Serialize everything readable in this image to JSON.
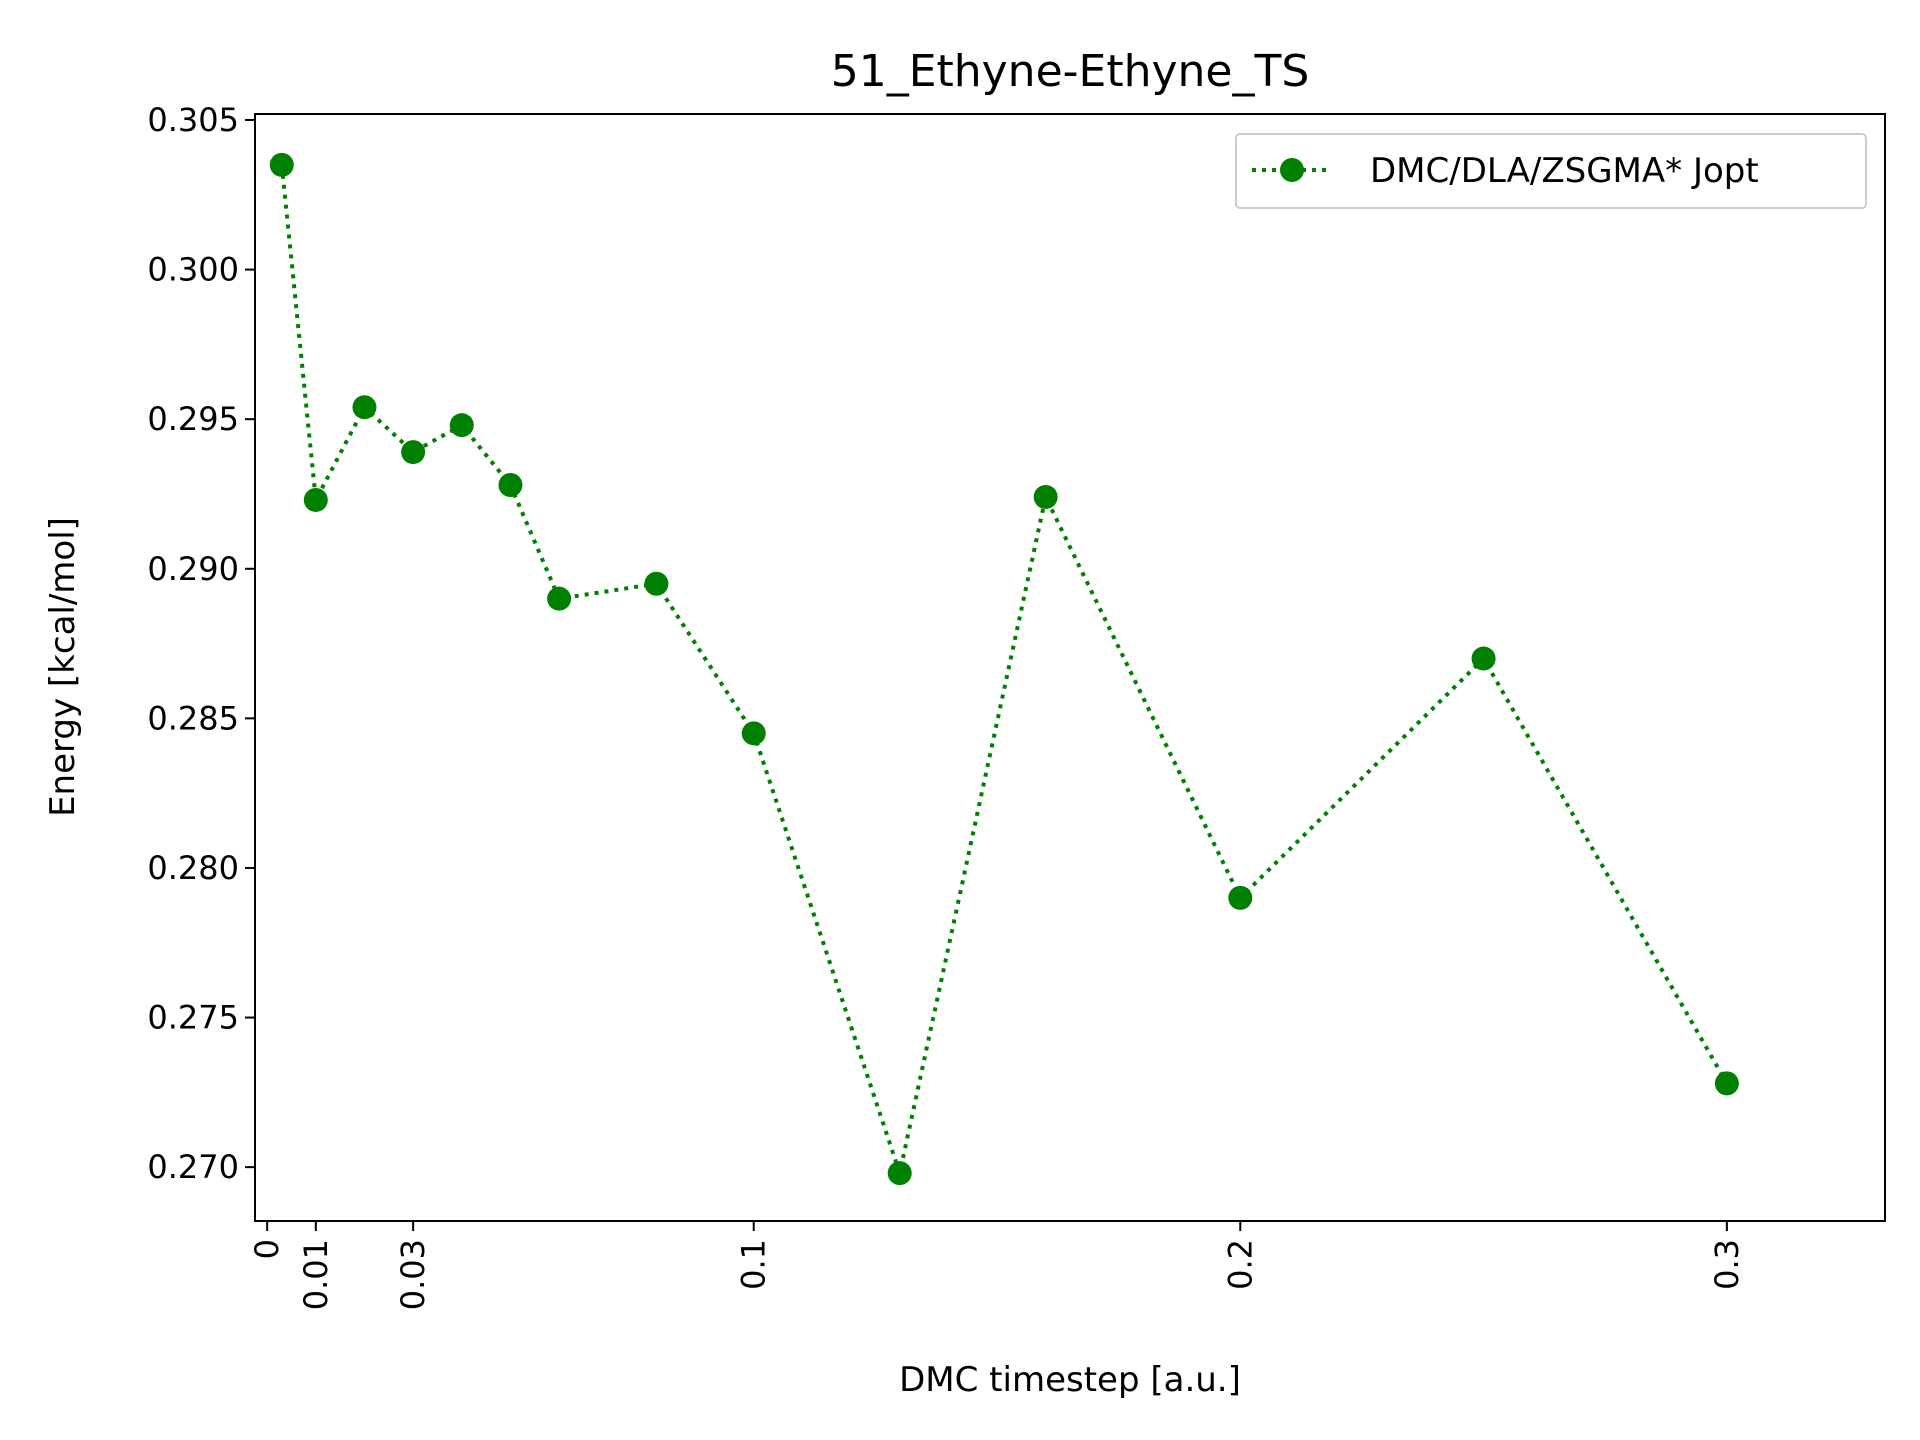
{
  "chart_data": {
    "type": "line",
    "title": "51_Ethyne-Ethyne_TS",
    "xlabel": "DMC timestep [a.u.]",
    "ylabel": "Energy [kcal/mol]",
    "xlim": [
      -0.0025,
      0.3325
    ],
    "ylim": [
      0.2682,
      0.3052
    ],
    "x_ticks": [
      0,
      0.01,
      0.03,
      0.1,
      0.2,
      0.3
    ],
    "x_tick_labels": [
      "0",
      "0.01",
      "0.03",
      "0.1",
      "0.2",
      "0.3"
    ],
    "y_ticks": [
      0.27,
      0.275,
      0.28,
      0.285,
      0.29,
      0.295,
      0.3,
      0.305
    ],
    "y_tick_labels": [
      "0.270",
      "0.275",
      "0.280",
      "0.285",
      "0.290",
      "0.295",
      "0.300",
      "0.305"
    ],
    "grid": false,
    "legend_position": "top-right",
    "series": [
      {
        "name": "DMC/DLA/ZSGMA* Jopt",
        "color": "#008000",
        "line_style": "dotted",
        "marker": "circle",
        "x": [
          0.003,
          0.01,
          0.02,
          0.03,
          0.04,
          0.05,
          0.06,
          0.08,
          0.1,
          0.13,
          0.16,
          0.2,
          0.25,
          0.3
        ],
        "y": [
          0.3035,
          0.2923,
          0.2954,
          0.2939,
          0.2948,
          0.2928,
          0.289,
          0.2895,
          0.2845,
          0.2698,
          0.2924,
          0.279,
          0.287,
          0.2728
        ]
      }
    ]
  }
}
